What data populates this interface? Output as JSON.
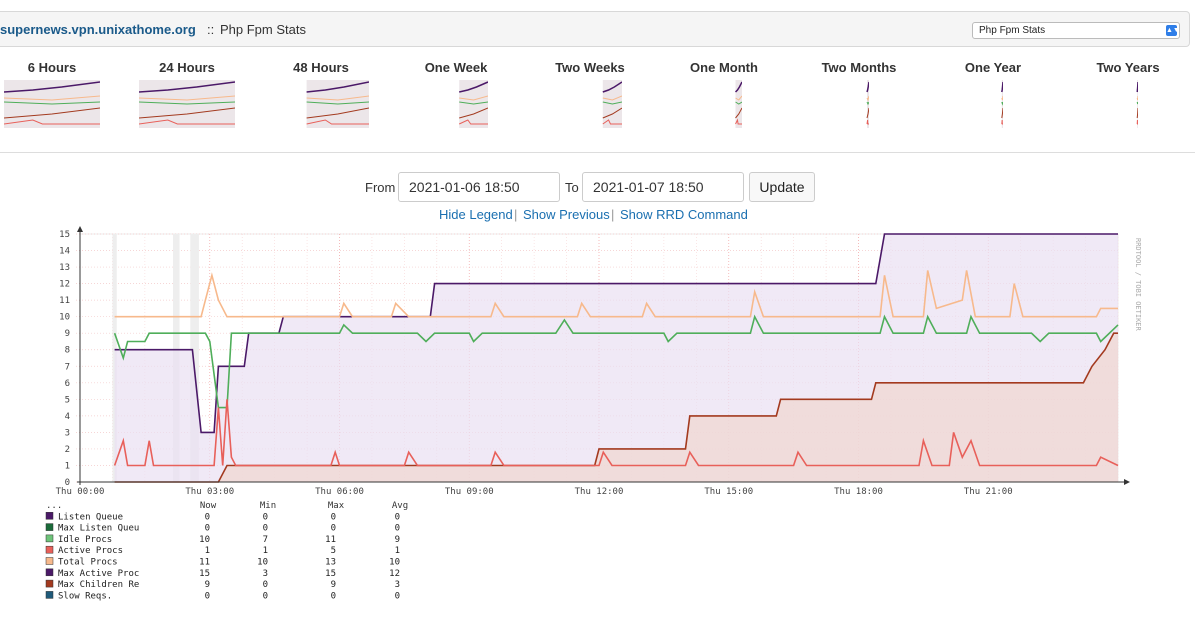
{
  "header": {
    "host": "supernews.vpn.unixathome.org",
    "separator": "::",
    "plugin": "Php Fpm Stats",
    "select_value": "Php Fpm Stats"
  },
  "periods": [
    {
      "label": "6 Hours"
    },
    {
      "label": "24 Hours"
    },
    {
      "label": "48 Hours"
    },
    {
      "label": "One Week"
    },
    {
      "label": "Two Weeks"
    },
    {
      "label": "One Month"
    },
    {
      "label": "Two Months"
    },
    {
      "label": "One Year"
    },
    {
      "label": "Two Years"
    }
  ],
  "range": {
    "from_label": "From",
    "from_value": "2021-01-06 18:50",
    "to_label": "To",
    "to_value": "2021-01-07 18:50",
    "update_label": "Update"
  },
  "links": {
    "hide_legend": "Hide Legend",
    "show_previous": "Show Previous",
    "show_rrd": "Show RRD Command",
    "sep": "|"
  },
  "chart_data": {
    "type": "area",
    "watermark": "RRDTOOL / TOBI OETIKER",
    "ylim": [
      0,
      15
    ],
    "y_ticks": [
      0,
      1,
      2,
      3,
      4,
      5,
      6,
      7,
      8,
      9,
      10,
      11,
      12,
      13,
      14,
      15
    ],
    "x_ticks": [
      "Thu 00:00",
      "Thu 03:00",
      "Thu 06:00",
      "Thu 09:00",
      "Thu 12:00",
      "Thu 15:00",
      "Thu 18:00",
      "Thu 21:00"
    ],
    "x_hours_range": [
      0,
      24
    ],
    "series": [
      {
        "name": "Max Active Proc",
        "color": "#4b1968",
        "fill": "#e9dff2",
        "points": [
          [
            0.8,
            8
          ],
          [
            1.8,
            8
          ],
          [
            2.6,
            8
          ],
          [
            2.8,
            3
          ],
          [
            3.1,
            3
          ],
          [
            3.2,
            7
          ],
          [
            3.8,
            7
          ],
          [
            3.9,
            9
          ],
          [
            4.6,
            9
          ],
          [
            4.7,
            10
          ],
          [
            8.1,
            10
          ],
          [
            8.2,
            12
          ],
          [
            18.4,
            12
          ],
          [
            18.6,
            15
          ],
          [
            24,
            15
          ]
        ]
      },
      {
        "name": "Total Procs",
        "color": "#f7b98c",
        "points": [
          [
            0.8,
            10
          ],
          [
            2.8,
            10
          ],
          [
            2.9,
            11
          ],
          [
            3.05,
            12.5
          ],
          [
            3.2,
            11
          ],
          [
            3.4,
            10
          ],
          [
            6.0,
            10
          ],
          [
            6.1,
            10.8
          ],
          [
            6.3,
            10
          ],
          [
            7.2,
            10
          ],
          [
            7.3,
            10.8
          ],
          [
            7.6,
            10
          ],
          [
            9.5,
            10
          ],
          [
            9.6,
            10.8
          ],
          [
            9.8,
            10
          ],
          [
            11.5,
            10
          ],
          [
            11.6,
            10.8
          ],
          [
            11.8,
            10
          ],
          [
            13.0,
            10
          ],
          [
            13.1,
            10.8
          ],
          [
            13.3,
            10
          ],
          [
            15.5,
            10
          ],
          [
            15.6,
            11.5
          ],
          [
            15.8,
            10
          ],
          [
            18.5,
            10
          ],
          [
            18.6,
            12.5
          ],
          [
            18.8,
            10
          ],
          [
            19.5,
            10
          ],
          [
            19.6,
            12.8
          ],
          [
            19.8,
            10.5
          ],
          [
            20.4,
            11
          ],
          [
            20.5,
            12.8
          ],
          [
            20.7,
            10
          ],
          [
            21.5,
            10
          ],
          [
            21.6,
            12
          ],
          [
            21.8,
            10
          ],
          [
            23.5,
            10
          ],
          [
            23.6,
            10.5
          ],
          [
            24,
            10.5
          ]
        ]
      },
      {
        "name": "Idle Procs",
        "color": "#4fae5a",
        "points": [
          [
            0.8,
            9
          ],
          [
            1.0,
            7.5
          ],
          [
            1.1,
            8.5
          ],
          [
            1.5,
            8.5
          ],
          [
            1.6,
            9
          ],
          [
            1.8,
            9
          ],
          [
            2.6,
            9
          ],
          [
            2.9,
            9
          ],
          [
            3.0,
            8.5
          ],
          [
            3.2,
            4.5
          ],
          [
            3.4,
            4.5
          ],
          [
            3.5,
            9
          ],
          [
            6.0,
            9
          ],
          [
            6.1,
            9.5
          ],
          [
            6.3,
            9
          ],
          [
            7.8,
            9
          ],
          [
            8.0,
            8.5
          ],
          [
            8.2,
            9
          ],
          [
            9.0,
            9
          ],
          [
            9.1,
            8.5
          ],
          [
            9.3,
            9
          ],
          [
            11.0,
            9
          ],
          [
            11.2,
            9.8
          ],
          [
            11.4,
            9
          ],
          [
            13.5,
            9
          ],
          [
            13.6,
            8.5
          ],
          [
            13.8,
            9
          ],
          [
            15.5,
            9
          ],
          [
            15.6,
            10
          ],
          [
            15.8,
            9
          ],
          [
            18.5,
            9
          ],
          [
            18.6,
            10
          ],
          [
            18.8,
            9
          ],
          [
            19.5,
            9
          ],
          [
            19.6,
            10
          ],
          [
            19.8,
            9
          ],
          [
            20.5,
            9
          ],
          [
            20.6,
            10
          ],
          [
            20.8,
            9
          ],
          [
            22.0,
            9
          ],
          [
            22.2,
            8.5
          ],
          [
            22.4,
            9
          ],
          [
            23.5,
            9
          ],
          [
            23.6,
            8.5
          ],
          [
            24,
            9.5
          ]
        ]
      },
      {
        "name": "Max Children Re",
        "color": "#a33a1f",
        "fill": "#f0d6d0",
        "points": [
          [
            0.8,
            0
          ],
          [
            3.2,
            0
          ],
          [
            3.4,
            1
          ],
          [
            11.9,
            1
          ],
          [
            12.0,
            2
          ],
          [
            14.0,
            2
          ],
          [
            14.1,
            4
          ],
          [
            16.1,
            4
          ],
          [
            16.2,
            5
          ],
          [
            18.3,
            5
          ],
          [
            18.4,
            6
          ],
          [
            23.2,
            6
          ],
          [
            23.4,
            7
          ],
          [
            23.7,
            8
          ],
          [
            23.9,
            9
          ],
          [
            24,
            9
          ]
        ]
      },
      {
        "name": "Active Procs",
        "color": "#e8605a",
        "points": [
          [
            0.8,
            1
          ],
          [
            1.0,
            2.5
          ],
          [
            1.1,
            1
          ],
          [
            1.5,
            1
          ],
          [
            1.6,
            2.5
          ],
          [
            1.7,
            1
          ],
          [
            2.6,
            1
          ],
          [
            3.1,
            1
          ],
          [
            3.2,
            4.5
          ],
          [
            3.3,
            1
          ],
          [
            3.4,
            5
          ],
          [
            3.5,
            1.5
          ],
          [
            3.6,
            1
          ],
          [
            5.8,
            1
          ],
          [
            5.9,
            1.8
          ],
          [
            6.0,
            1
          ],
          [
            7.5,
            1
          ],
          [
            7.6,
            1.8
          ],
          [
            7.8,
            1
          ],
          [
            9.5,
            1
          ],
          [
            9.6,
            1.8
          ],
          [
            9.8,
            1
          ],
          [
            12.0,
            1
          ],
          [
            12.1,
            1.8
          ],
          [
            12.3,
            1
          ],
          [
            14.0,
            1
          ],
          [
            14.1,
            1.8
          ],
          [
            14.3,
            1
          ],
          [
            16.5,
            1
          ],
          [
            16.6,
            1.8
          ],
          [
            16.8,
            1
          ],
          [
            19.4,
            1
          ],
          [
            19.5,
            2.5
          ],
          [
            19.7,
            1
          ],
          [
            20.1,
            1
          ],
          [
            20.2,
            3
          ],
          [
            20.4,
            1.5
          ],
          [
            20.6,
            2.5
          ],
          [
            20.8,
            1
          ],
          [
            23.5,
            1
          ],
          [
            23.6,
            1.5
          ],
          [
            24,
            1
          ]
        ]
      }
    ],
    "legend_headers": [
      "Now",
      "Min",
      "Max",
      "Avg"
    ],
    "legend_header_prefix": "...",
    "legend": [
      {
        "name": "Listen Queue",
        "color": "#4b1968",
        "now": "0",
        "min": "0",
        "max": "0",
        "avg": "0"
      },
      {
        "name": "Max Listen Queu",
        "color": "#1b6b3a",
        "now": "0",
        "min": "0",
        "max": "0",
        "avg": "0"
      },
      {
        "name": "Idle Procs",
        "color": "#6ec47a",
        "now": "10",
        "min": "7",
        "max": "11",
        "avg": "9"
      },
      {
        "name": "Active Procs",
        "color": "#e8605a",
        "now": "1",
        "min": "1",
        "max": "5",
        "avg": "1"
      },
      {
        "name": "Total Procs",
        "color": "#f7b98c",
        "now": "11",
        "min": "10",
        "max": "13",
        "avg": "10"
      },
      {
        "name": "Max Active Proc",
        "color": "#4b1968",
        "now": "15",
        "min": "3",
        "max": "15",
        "avg": "12"
      },
      {
        "name": "Max Children Re",
        "color": "#a33a1f",
        "now": "9",
        "min": "0",
        "max": "9",
        "avg": "3"
      },
      {
        "name": "Slow Reqs.",
        "color": "#1f5a7a",
        "now": "0",
        "min": "0",
        "max": "0",
        "avg": "0"
      }
    ]
  }
}
